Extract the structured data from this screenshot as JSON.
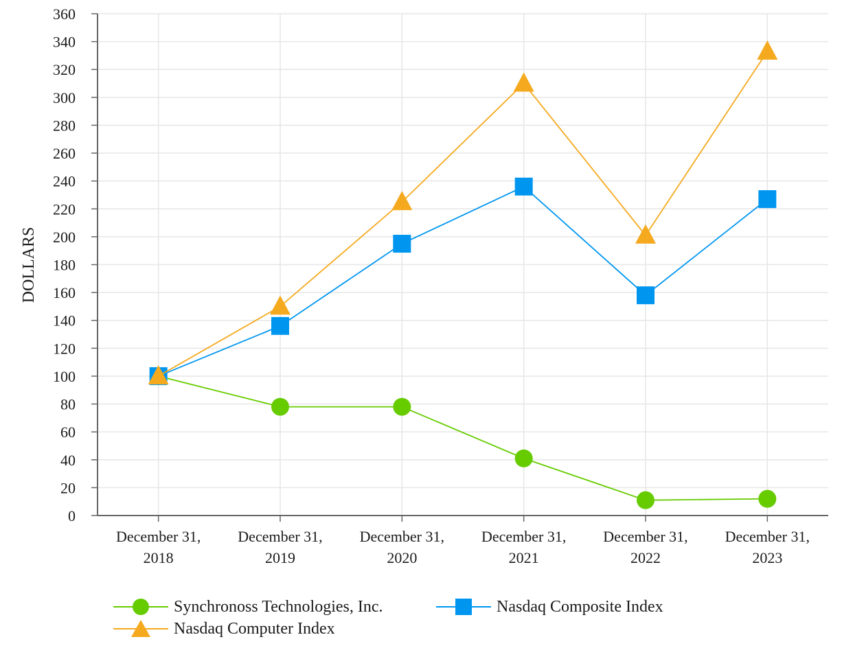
{
  "chart_data": {
    "type": "line",
    "title": "",
    "xlabel": "",
    "ylabel": "DOLLARS",
    "ylim": [
      0,
      360
    ],
    "ytick_step": 20,
    "grid": true,
    "legend_position": "bottom",
    "categories": [
      [
        "December 31,",
        "2018"
      ],
      [
        "December 31,",
        "2019"
      ],
      [
        "December 31,",
        "2020"
      ],
      [
        "December 31,",
        "2021"
      ],
      [
        "December 31,",
        "2022"
      ],
      [
        "December 31,",
        "2023"
      ]
    ],
    "series": [
      {
        "name": "Synchronoss Technologies, Inc.",
        "marker": "circle",
        "color": "#66cc00",
        "values": [
          100,
          78,
          78,
          41,
          11,
          12
        ]
      },
      {
        "name": "Nasdaq Composite Index",
        "marker": "square",
        "color": "#0096f0",
        "values": [
          100,
          136,
          195,
          236,
          158,
          227
        ]
      },
      {
        "name": "Nasdaq Computer Index",
        "marker": "triangle",
        "color": "#f5a91e",
        "values": [
          100,
          150,
          225,
          310,
          201,
          333
        ]
      }
    ]
  }
}
